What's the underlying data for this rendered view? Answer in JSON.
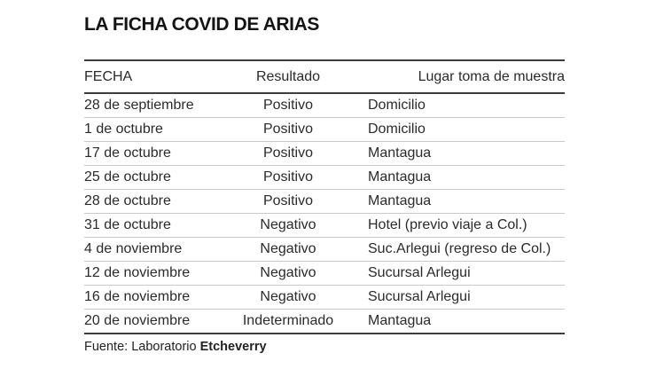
{
  "title": "LA FICHA COVID DE ARIAS",
  "chart_data": {
    "type": "table",
    "title": "LA FICHA COVID DE ARIAS",
    "columns": [
      "FECHA",
      "Resultado",
      "Lugar toma de muestra"
    ],
    "rows": [
      [
        "28 de septiembre",
        "Positivo",
        "Domicilio"
      ],
      [
        "1 de octubre",
        "Positivo",
        "Domicilio"
      ],
      [
        "17 de octubre",
        "Positivo",
        "Mantagua"
      ],
      [
        "25 de octubre",
        "Positivo",
        "Mantagua"
      ],
      [
        "28 de octubre",
        "Positivo",
        "Mantagua"
      ],
      [
        "31 de octubre",
        "Negativo",
        "Hotel (previo viaje a Col.)"
      ],
      [
        "4 de noviembre",
        "Negativo",
        "Suc.Arlegui (regreso de Col.)"
      ],
      [
        "12 de noviembre",
        "Negativo",
        "Sucursal Arlegui"
      ],
      [
        "16 de noviembre",
        "Negativo",
        "Sucursal Arlegui"
      ],
      [
        "20 de noviembre",
        "Indeterminado",
        "Mantagua"
      ]
    ],
    "source": "Fuente: Laboratorio Etcheverry",
    "layout": {
      "grid": "horizontal row separators only",
      "column_alignment": [
        "left",
        "center",
        "left (header right-aligned)"
      ]
    }
  },
  "footer": {
    "source_prefix": "Fuente: Laboratorio ",
    "source_name": "Etcheverry"
  },
  "colors": {
    "background": "#ffffff",
    "text": "#2b2b2b",
    "title_text": "#141414",
    "rule_dark": "#3d3d3d",
    "rule_light": "#c9c9c9"
  }
}
